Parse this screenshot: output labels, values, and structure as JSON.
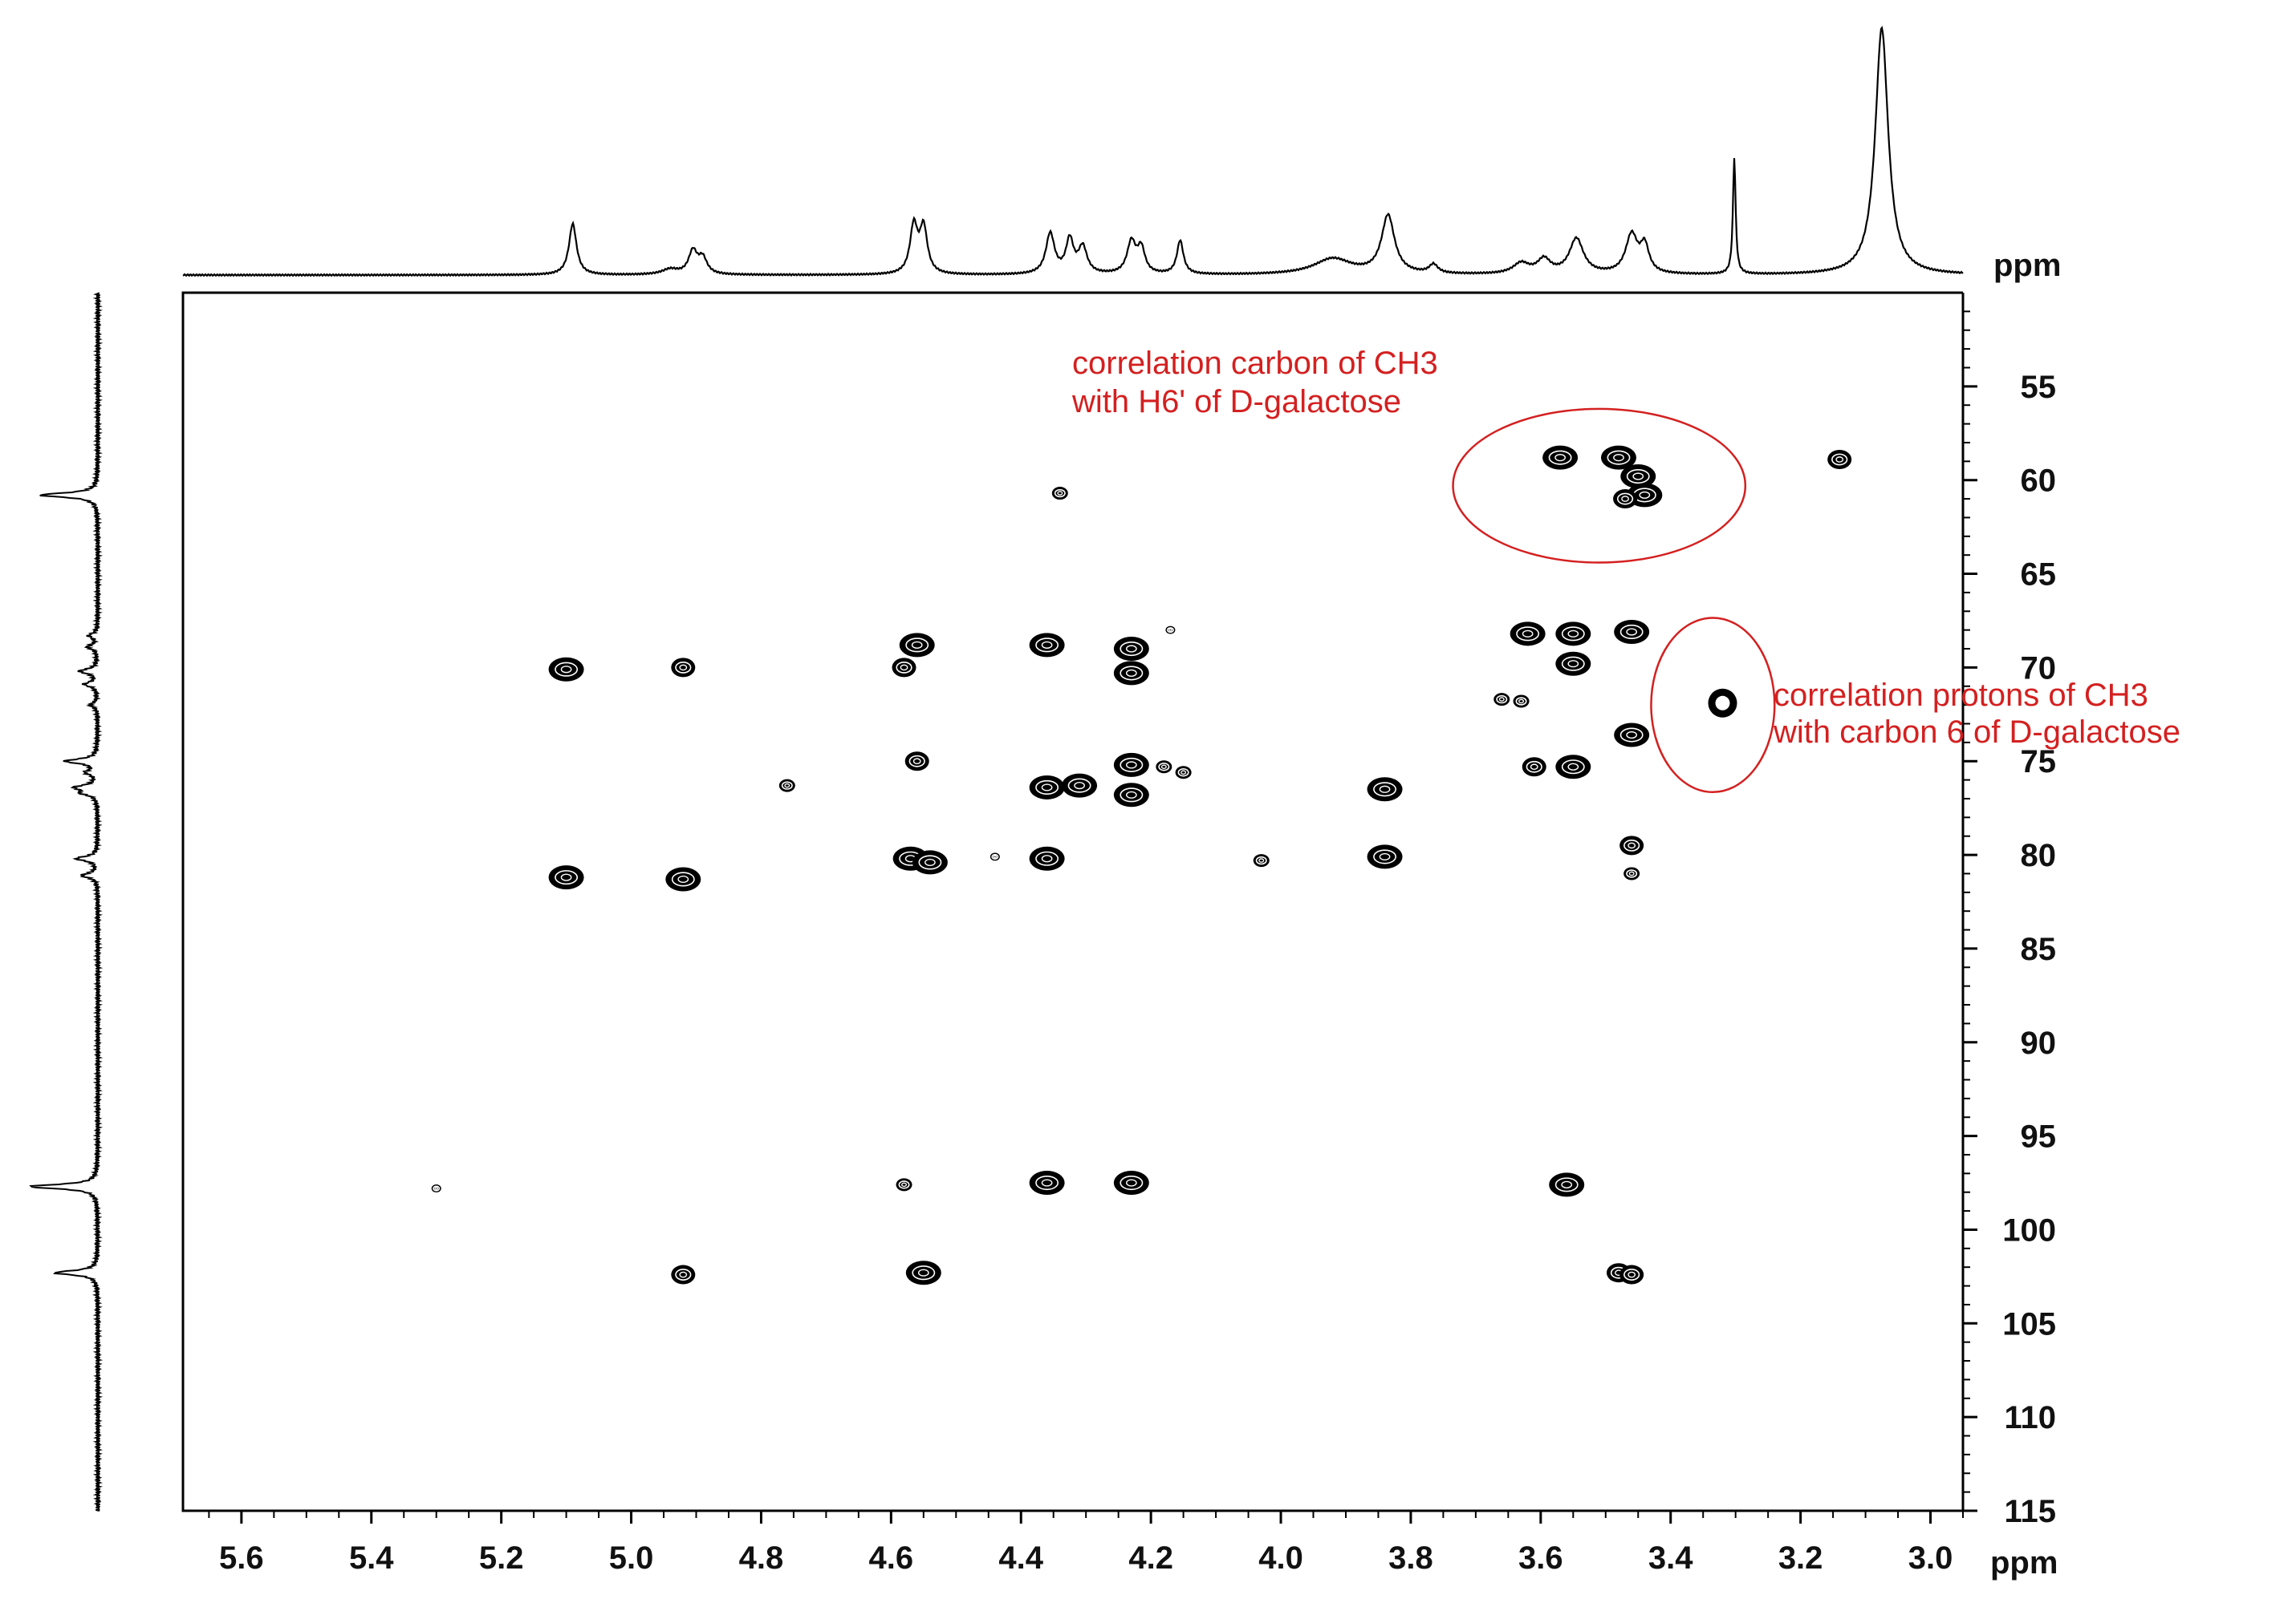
{
  "chart_data": {
    "type": "heatmap",
    "subtype": "2D NMR HSQC contour plot with 1D projections",
    "x_axis": {
      "unit_label": "ppm",
      "range": [
        5.69,
        2.95
      ],
      "reversed": true,
      "ticks": [
        5.6,
        5.4,
        5.2,
        5.0,
        4.8,
        4.6,
        4.4,
        4.2,
        4.0,
        3.8,
        3.6,
        3.4,
        3.2,
        3.0
      ],
      "tick_labels": [
        "5.6",
        "5.4",
        "5.2",
        "5.0",
        "4.8",
        "4.6",
        "4.4",
        "4.2",
        "4.0",
        "3.8",
        "3.6",
        "3.4",
        "3.2",
        "3.0"
      ]
    },
    "y_axis": {
      "unit_label": "ppm",
      "range": [
        50,
        115
      ],
      "reversed": true,
      "ticks": [
        55,
        60,
        65,
        70,
        75,
        80,
        85,
        90,
        95,
        100,
        105,
        110,
        115
      ],
      "tick_labels": [
        "55",
        "60",
        "65",
        "70",
        "75",
        "80",
        "85",
        "90",
        "95",
        "100",
        "105",
        "110",
        "115"
      ]
    },
    "grid": false,
    "top_projection_peaks": [
      {
        "ppm": 5.09,
        "height": 0.29,
        "width": 0.007
      },
      {
        "ppm": 4.94,
        "height": 0.03,
        "width": 0.015
      },
      {
        "ppm": 4.905,
        "height": 0.13,
        "width": 0.008
      },
      {
        "ppm": 4.89,
        "height": 0.09,
        "width": 0.008
      },
      {
        "ppm": 4.565,
        "height": 0.27,
        "width": 0.007
      },
      {
        "ppm": 4.55,
        "height": 0.26,
        "width": 0.007
      },
      {
        "ppm": 4.355,
        "height": 0.23,
        "width": 0.008
      },
      {
        "ppm": 4.325,
        "height": 0.19,
        "width": 0.007
      },
      {
        "ppm": 4.305,
        "height": 0.15,
        "width": 0.008
      },
      {
        "ppm": 4.23,
        "height": 0.18,
        "width": 0.008
      },
      {
        "ppm": 4.215,
        "height": 0.14,
        "width": 0.007
      },
      {
        "ppm": 4.155,
        "height": 0.19,
        "width": 0.006
      },
      {
        "ppm": 3.92,
        "height": 0.09,
        "width": 0.035
      },
      {
        "ppm": 3.835,
        "height": 0.33,
        "width": 0.012
      },
      {
        "ppm": 3.765,
        "height": 0.05,
        "width": 0.008
      },
      {
        "ppm": 3.63,
        "height": 0.06,
        "width": 0.015
      },
      {
        "ppm": 3.595,
        "height": 0.08,
        "width": 0.012
      },
      {
        "ppm": 3.545,
        "height": 0.2,
        "width": 0.013
      },
      {
        "ppm": 3.46,
        "height": 0.22,
        "width": 0.011
      },
      {
        "ppm": 3.44,
        "height": 0.15,
        "width": 0.008
      },
      {
        "ppm": 3.302,
        "height": 0.66,
        "width": 0.0025
      },
      {
        "ppm": 3.075,
        "height": 1.4,
        "width": 0.012
      }
    ],
    "left_projection_peaks": [
      {
        "ppm": 60.8,
        "height": 0.8
      },
      {
        "ppm": 68.3,
        "height": 0.12
      },
      {
        "ppm": 68.9,
        "height": 0.14
      },
      {
        "ppm": 70.2,
        "height": 0.25
      },
      {
        "ppm": 70.9,
        "height": 0.18
      },
      {
        "ppm": 72.0,
        "height": 0.1
      },
      {
        "ppm": 75.0,
        "height": 0.45
      },
      {
        "ppm": 75.6,
        "height": 0.15
      },
      {
        "ppm": 76.4,
        "height": 0.3
      },
      {
        "ppm": 76.7,
        "height": 0.2
      },
      {
        "ppm": 80.2,
        "height": 0.3
      },
      {
        "ppm": 81.1,
        "height": 0.22
      },
      {
        "ppm": 97.7,
        "height": 0.95
      },
      {
        "ppm": 102.3,
        "height": 0.6
      }
    ],
    "cross_peaks": [
      {
        "x": 3.57,
        "y": 58.8,
        "size": "large"
      },
      {
        "x": 3.48,
        "y": 58.8,
        "size": "large"
      },
      {
        "x": 3.45,
        "y": 59.8,
        "size": "large"
      },
      {
        "x": 3.44,
        "y": 60.8,
        "size": "large"
      },
      {
        "x": 3.47,
        "y": 61.0,
        "size": "medium"
      },
      {
        "x": 3.14,
        "y": 58.9,
        "size": "medium"
      },
      {
        "x": 4.34,
        "y": 60.7,
        "size": "small"
      },
      {
        "x": 5.1,
        "y": 70.1,
        "size": "large"
      },
      {
        "x": 4.92,
        "y": 70.0,
        "size": "medium"
      },
      {
        "x": 4.56,
        "y": 68.8,
        "size": "large"
      },
      {
        "x": 4.58,
        "y": 70.0,
        "size": "medium"
      },
      {
        "x": 4.36,
        "y": 68.8,
        "size": "large"
      },
      {
        "x": 4.23,
        "y": 69.0,
        "size": "large"
      },
      {
        "x": 4.23,
        "y": 70.3,
        "size": "large"
      },
      {
        "x": 4.17,
        "y": 68.0,
        "size": "tiny"
      },
      {
        "x": 3.62,
        "y": 68.2,
        "size": "large"
      },
      {
        "x": 3.55,
        "y": 68.2,
        "size": "large"
      },
      {
        "x": 3.55,
        "y": 69.8,
        "size": "large"
      },
      {
        "x": 3.46,
        "y": 68.1,
        "size": "large"
      },
      {
        "x": 3.66,
        "y": 71.7,
        "size": "small"
      },
      {
        "x": 3.63,
        "y": 71.8,
        "size": "small"
      },
      {
        "x": 3.32,
        "y": 71.9,
        "size": "ring"
      },
      {
        "x": 3.46,
        "y": 73.6,
        "size": "large"
      },
      {
        "x": 4.76,
        "y": 76.3,
        "size": "small"
      },
      {
        "x": 4.56,
        "y": 75.0,
        "size": "medium"
      },
      {
        "x": 4.36,
        "y": 76.4,
        "size": "large"
      },
      {
        "x": 4.31,
        "y": 76.3,
        "size": "large"
      },
      {
        "x": 4.23,
        "y": 75.2,
        "size": "large"
      },
      {
        "x": 4.23,
        "y": 76.8,
        "size": "large"
      },
      {
        "x": 4.18,
        "y": 75.3,
        "size": "small"
      },
      {
        "x": 4.15,
        "y": 75.6,
        "size": "small"
      },
      {
        "x": 3.84,
        "y": 76.5,
        "size": "large"
      },
      {
        "x": 3.61,
        "y": 75.3,
        "size": "medium"
      },
      {
        "x": 3.55,
        "y": 75.3,
        "size": "large"
      },
      {
        "x": 5.1,
        "y": 81.2,
        "size": "large"
      },
      {
        "x": 4.92,
        "y": 81.3,
        "size": "large"
      },
      {
        "x": 4.57,
        "y": 80.2,
        "size": "large"
      },
      {
        "x": 4.54,
        "y": 80.4,
        "size": "large"
      },
      {
        "x": 4.44,
        "y": 80.1,
        "size": "tiny"
      },
      {
        "x": 4.36,
        "y": 80.2,
        "size": "large"
      },
      {
        "x": 4.03,
        "y": 80.3,
        "size": "small"
      },
      {
        "x": 3.84,
        "y": 80.1,
        "size": "large"
      },
      {
        "x": 3.46,
        "y": 79.5,
        "size": "medium"
      },
      {
        "x": 3.46,
        "y": 81.0,
        "size": "small"
      },
      {
        "x": 5.3,
        "y": 97.8,
        "size": "tiny"
      },
      {
        "x": 4.58,
        "y": 97.6,
        "size": "small"
      },
      {
        "x": 4.36,
        "y": 97.5,
        "size": "large"
      },
      {
        "x": 4.23,
        "y": 97.5,
        "size": "large"
      },
      {
        "x": 3.56,
        "y": 97.6,
        "size": "large"
      },
      {
        "x": 4.92,
        "y": 102.4,
        "size": "medium"
      },
      {
        "x": 4.55,
        "y": 102.3,
        "size": "large"
      },
      {
        "x": 3.48,
        "y": 102.3,
        "size": "medium"
      },
      {
        "x": 3.46,
        "y": 102.4,
        "size": "medium"
      }
    ],
    "annotations": [
      {
        "lines": [
          "correlation carbon of CH3",
          "with H6' of D-galactose"
        ],
        "color": "#d42020",
        "ellipse_center": {
          "x": 3.51,
          "y": 60.3
        },
        "ellipse_span_ppm": {
          "x": 0.45,
          "y": 8.2
        }
      },
      {
        "lines": [
          "correlation protons of CH3",
          "with carbon 6 of D-galactose"
        ],
        "color": "#d42020",
        "ellipse_center": {
          "x": 3.335,
          "y": 72.0
        },
        "ellipse_span_ppm": {
          "x": 0.19,
          "y": 9.3
        }
      }
    ],
    "colors": {
      "contours": "#000000",
      "annotation": "#d42020",
      "axes": "#000000"
    }
  }
}
